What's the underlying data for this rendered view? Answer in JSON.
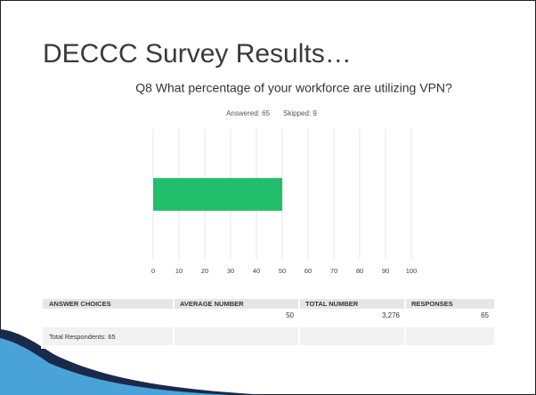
{
  "slide_title": "DECCC Survey Results…",
  "chart_data": {
    "type": "bar",
    "orientation": "horizontal",
    "title": "Q8 What percentage of your workforce are utilizing VPN?",
    "subtitle": [
      "Answered: 65",
      "Skipped: 9"
    ],
    "categories": [
      null
    ],
    "values": [
      50
    ],
    "color": "#21bf6b",
    "xlim": [
      0,
      100
    ],
    "xticks": [
      0,
      10,
      20,
      30,
      40,
      50,
      60,
      70,
      80,
      90,
      100
    ],
    "grid": true
  },
  "table": {
    "header": [
      "ANSWER CHOICES",
      "AVERAGE NUMBER",
      "TOTAL NUMBER",
      "RESPONSES"
    ],
    "rows": [
      [
        "",
        "50",
        "3,276",
        "65"
      ]
    ],
    "footer": "Total Respondents: 65"
  }
}
